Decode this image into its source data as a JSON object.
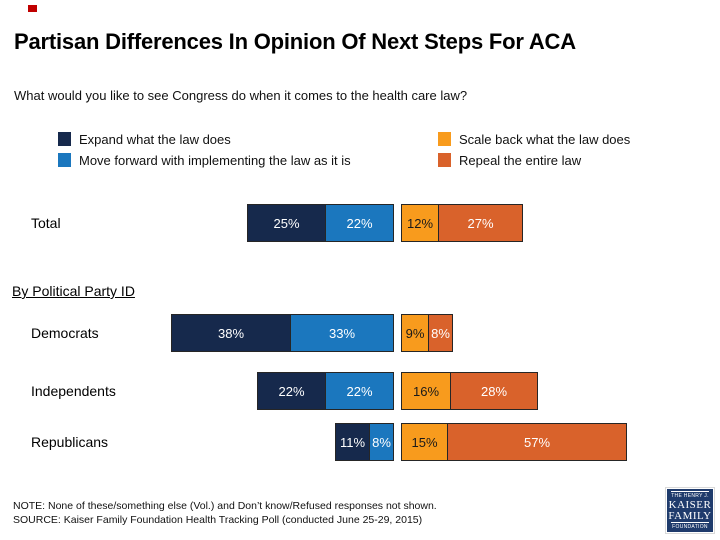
{
  "slide": {
    "title": "Partisan Differences In Opinion Of Next Steps For ACA",
    "subtitle": "What would you like to see Congress do when it comes to the health care law?",
    "corner_mark_color": "#C00000",
    "background": "#FFFFFF"
  },
  "section_header": "By Political Party ID",
  "chart_data": {
    "type": "bar",
    "variant": "horizontal-diverging-stacked",
    "title": "Partisan Differences In Opinion Of Next Steps For ACA",
    "subtitle": "What would you like to see Congress do when it comes to the health care law?",
    "categories": [
      "Total",
      "Democrats",
      "Independents",
      "Republicans"
    ],
    "series": [
      {
        "name": "Expand what the law does",
        "side": "left",
        "color": "#16294C",
        "label_color": "#FFFFFF",
        "values": [
          25,
          38,
          22,
          11
        ]
      },
      {
        "name": "Move forward with implementing the law as it is",
        "side": "left",
        "color": "#1B77BE",
        "label_color": "#FFFFFF",
        "values": [
          22,
          33,
          22,
          8
        ]
      },
      {
        "name": "Scale back what the law does",
        "side": "right",
        "color": "#F89B1D",
        "label_color": "#1A1A1A",
        "values": [
          12,
          9,
          16,
          15
        ]
      },
      {
        "name": "Repeal the entire law",
        "side": "right",
        "color": "#D9622B",
        "label_color": "#FFFFFF",
        "values": [
          27,
          8,
          28,
          57
        ]
      }
    ],
    "value_suffix": "%",
    "value_labels_inside": true,
    "legend_position": "top",
    "axes_hidden": true,
    "gridlines": false,
    "segment_border_color": "#262626"
  },
  "footer": {
    "note": "NOTE: None of these/something else (Vol.) and Don’t know/Refused responses not shown.",
    "source": "SOURCE: Kaiser Family Foundation Health Tracking Poll (conducted June 25-29, 2015)"
  },
  "logo": {
    "line1": "THE HENRY J.",
    "line2": "KAISER",
    "line3": "FAMILY",
    "line4": "FOUNDATION",
    "bg_color": "#1F3B6C"
  }
}
